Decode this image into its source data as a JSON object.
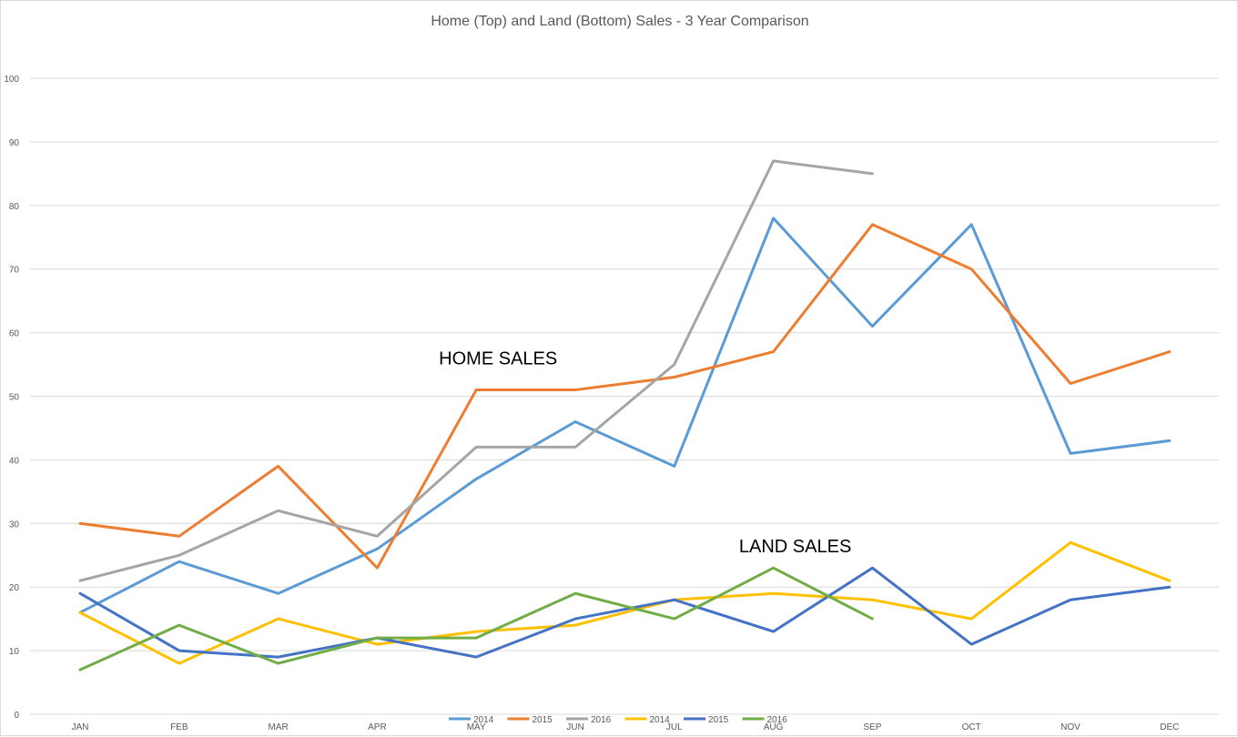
{
  "chart_data": {
    "type": "line",
    "title": "Home (Top) and Land (Bottom) Sales - 3 Year Comparison",
    "xlabel": "",
    "ylabel": "",
    "categories": [
      "JAN",
      "FEB",
      "MAR",
      "APR",
      "MAY",
      "JUN",
      "JUL",
      "AUG",
      "SEP",
      "OCT",
      "NOV",
      "DEC"
    ],
    "ylim": [
      0,
      100
    ],
    "yticks": [
      0,
      10,
      20,
      30,
      40,
      50,
      60,
      70,
      80,
      90,
      100
    ],
    "grid": true,
    "legend_position": "bottom",
    "annotations": [
      {
        "text": "HOME SALES",
        "x": "MAY",
        "y": 55
      },
      {
        "text": "LAND SALES",
        "x": "AUG",
        "y": 25.5
      }
    ],
    "series": [
      {
        "name": "2014",
        "group": "home",
        "color": "#5B9BD5",
        "values": [
          16,
          24,
          19,
          26,
          37,
          46,
          39,
          78,
          61,
          77,
          41,
          43
        ]
      },
      {
        "name": "2015",
        "group": "home",
        "color": "#ED7D31",
        "values": [
          30,
          28,
          39,
          23,
          51,
          51,
          53,
          57,
          77,
          70,
          52,
          57
        ]
      },
      {
        "name": "2016",
        "group": "home",
        "color": "#A5A5A5",
        "values": [
          21,
          25,
          32,
          28,
          42,
          42,
          55,
          87,
          85,
          null,
          null,
          null
        ]
      },
      {
        "name": "2014",
        "group": "land",
        "color": "#FFC000",
        "values": [
          16,
          8,
          15,
          11,
          13,
          14,
          18,
          19,
          18,
          15,
          27,
          21
        ]
      },
      {
        "name": "2015",
        "group": "land",
        "color": "#4472C4",
        "values": [
          19,
          10,
          9,
          12,
          9,
          15,
          18,
          13,
          23,
          11,
          18,
          20
        ]
      },
      {
        "name": "2016",
        "group": "land",
        "color": "#70AD47",
        "values": [
          7,
          14,
          8,
          12,
          12,
          19,
          15,
          23,
          15,
          null,
          null,
          null
        ]
      }
    ]
  }
}
